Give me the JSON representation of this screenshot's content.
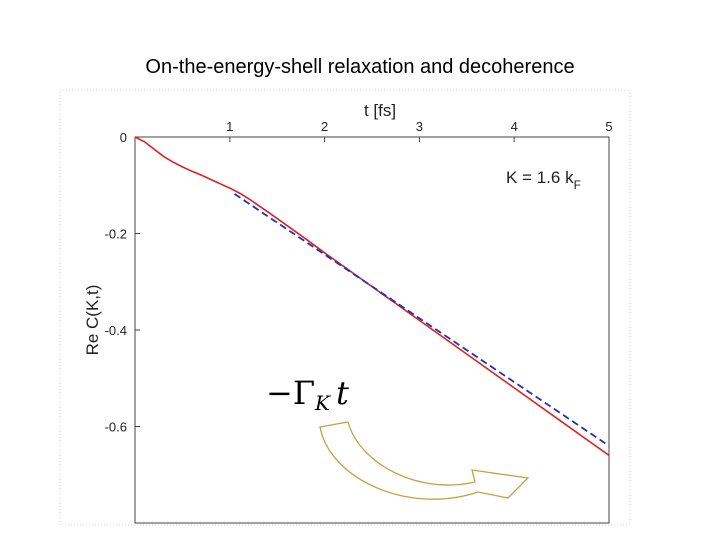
{
  "slide": {
    "title": "On-the-energy-shell relaxation and decoherence"
  },
  "chart_data": {
    "type": "line",
    "title": "",
    "xlabel": "t [fs]",
    "ylabel": "Re C(K,t)",
    "xlim": [
      0,
      5
    ],
    "ylim": [
      -0.8,
      0
    ],
    "x_ticks": [
      "1",
      "2",
      "3",
      "4",
      "5"
    ],
    "y_ticks": [
      "0",
      "-0.2",
      "-0.4",
      "-0.6"
    ],
    "grid": false,
    "series": [
      {
        "style": "solid",
        "color": "#e02020",
        "x": [
          0,
          0.1,
          0.2,
          0.3,
          0.4,
          0.5,
          0.6,
          0.7,
          0.8,
          0.9,
          1.0,
          1.1,
          1.2,
          1.4,
          1.6,
          1.8,
          2.0,
          2.5,
          3.0,
          3.5,
          4.0,
          4.5,
          5.0
        ],
        "values": [
          0,
          -0.01,
          -0.025,
          -0.04,
          -0.052,
          -0.062,
          -0.071,
          -0.079,
          -0.088,
          -0.097,
          -0.106,
          -0.116,
          -0.128,
          -0.155,
          -0.183,
          -0.211,
          -0.24,
          -0.31,
          -0.38,
          -0.45,
          -0.52,
          -0.59,
          -0.66
        ]
      },
      {
        "style": "dashed",
        "color": "#2030c0",
        "x": [
          1.05,
          5.0
        ],
        "values": [
          -0.118,
          -0.64
        ]
      }
    ],
    "annotations": {
      "K_label": {
        "prefix": "K = 1.6 k",
        "subscript": "F"
      },
      "formula": {
        "minus": "−",
        "gamma": "Γ",
        "subscript": "K",
        "t": "t"
      }
    }
  }
}
